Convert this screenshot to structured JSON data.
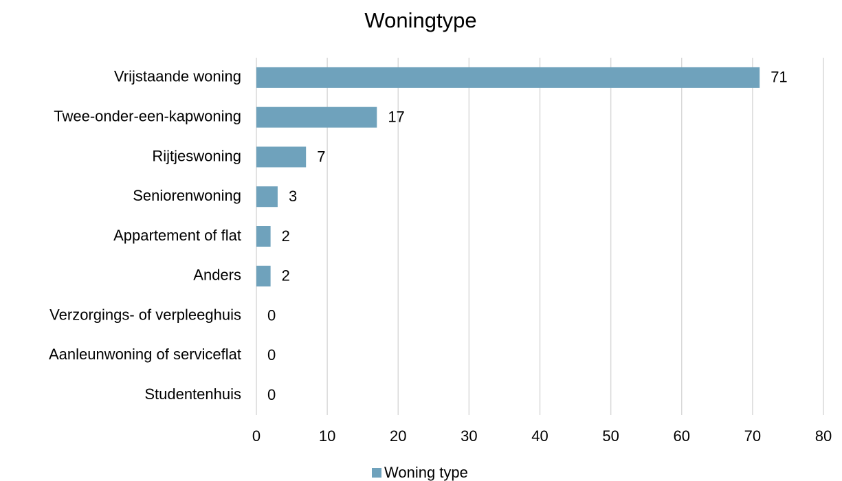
{
  "chart_data": {
    "type": "hbar",
    "title": "Woningtype",
    "categories": [
      "Vrijstaande woning",
      "Twee-onder-een-kapwoning",
      "Rijtjeswoning",
      "Seniorenwoning",
      "Appartement of flat",
      "Anders",
      "Verzorgings- of verpleeghuis",
      "Aanleunwoning of serviceflat",
      "Studentenhuis"
    ],
    "series": [
      {
        "name": "Woning type",
        "color": "#6fa2bc",
        "values": [
          71,
          17,
          7,
          3,
          2,
          2,
          0,
          0,
          0
        ]
      }
    ],
    "xlim": [
      0,
      80
    ],
    "xticks": [
      0,
      10,
      20,
      30,
      40,
      50,
      60,
      70,
      80
    ],
    "grid": true,
    "legend": "bottom"
  }
}
